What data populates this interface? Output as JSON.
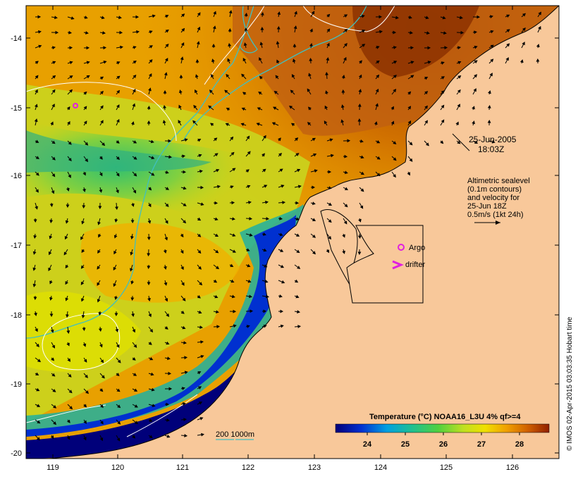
{
  "map": {
    "date": "25-Jun-2005",
    "time": "18:03Z",
    "x_ticks": [
      "119",
      "120",
      "121",
      "122",
      "123",
      "124",
      "125",
      "126"
    ],
    "y_ticks": [
      "-14",
      "-15",
      "-16",
      "-17",
      "-18",
      "-19",
      "-20"
    ],
    "altimetry_note": [
      "Altimetric sealevel",
      "(0.1m contours)",
      "and velocity for",
      "25-Jun 18Z",
      "0.5m/s (1kt 24h)"
    ],
    "argo_label": "Argo",
    "drifter_label": "drifter",
    "isobath_label": "200  1000m",
    "colorbar_title": "Temperature (°C) NOAA16_L3U 4% qf>=4",
    "colorbar_ticks": [
      "24",
      "25",
      "26",
      "27",
      "28"
    ],
    "credit": "© IMOS 02-Apr-2015 03:03:35 Hobart time"
  },
  "colors": {
    "land": "#f8c89a",
    "argo": "#e020e0",
    "drifter": "#e020e0",
    "isobath": "#40c0c0"
  }
}
